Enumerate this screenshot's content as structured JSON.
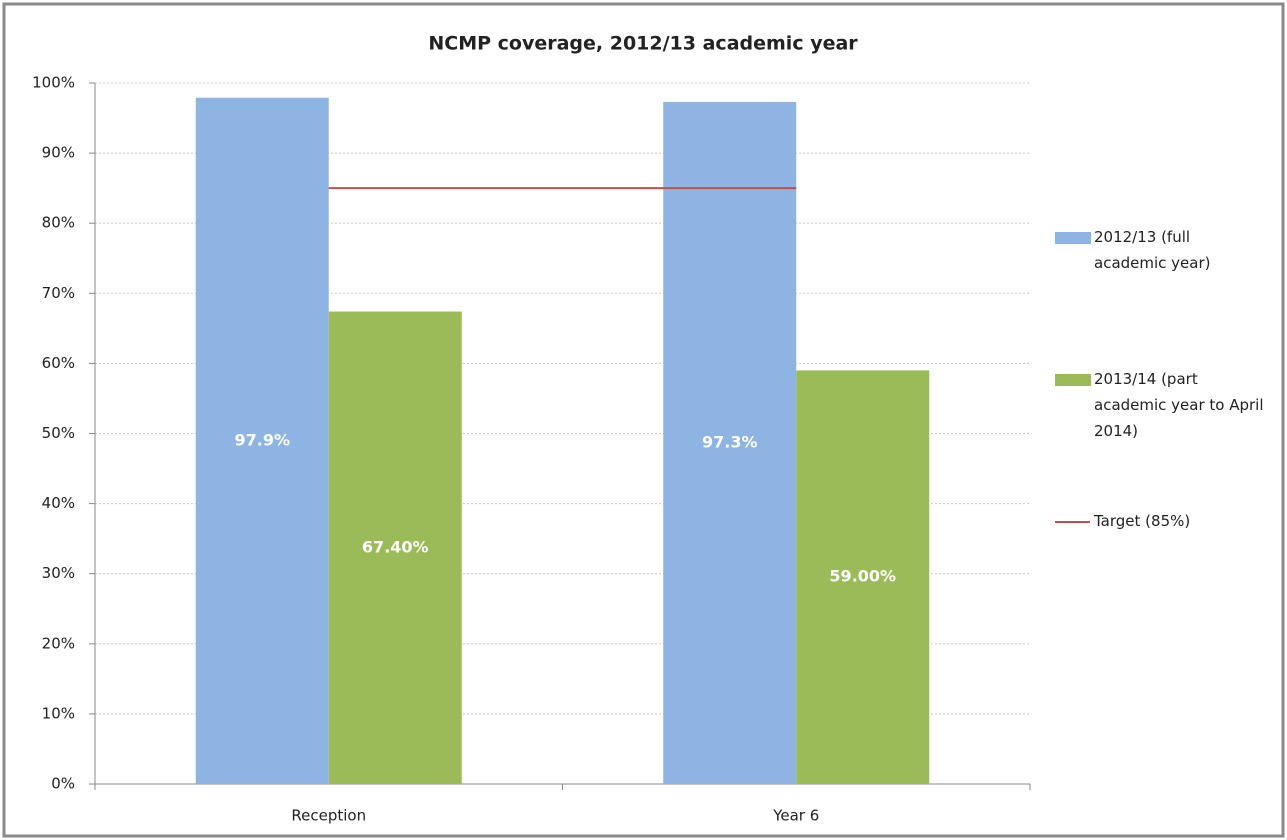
{
  "chart_data": {
    "type": "bar",
    "title": "NCMP coverage, 2012/13 academic year",
    "categories": [
      "Reception",
      "Year 6"
    ],
    "series": [
      {
        "name": "2012/13 (full academic year)",
        "color": "#8eb4e3",
        "values": [
          97.9,
          97.3
        ],
        "value_labels": [
          "97.9%",
          "97.3%"
        ]
      },
      {
        "name": "2013/14 (part academic year to April 2014)",
        "color": "#9bbb59",
        "values": [
          67.4,
          59.0
        ],
        "value_labels": [
          "67.40%",
          "59.00%"
        ]
      },
      {
        "name": "Target (85%)",
        "color": "#c0504d",
        "type": "line",
        "values": [
          85,
          85
        ]
      }
    ],
    "ylim": [
      0,
      100
    ],
    "yticks": [
      {
        "value": 0,
        "label": "0%"
      },
      {
        "value": 10,
        "label": "10%"
      },
      {
        "value": 20,
        "label": "20%"
      },
      {
        "value": 30,
        "label": "30%"
      },
      {
        "value": 40,
        "label": "40%"
      },
      {
        "value": 50,
        "label": "50%"
      },
      {
        "value": 60,
        "label": "60%"
      },
      {
        "value": 70,
        "label": "70%"
      },
      {
        "value": 80,
        "label": "80%"
      },
      {
        "value": 90,
        "label": "90%"
      },
      {
        "value": 100,
        "label": "100%"
      }
    ],
    "grid": true,
    "legend": "right"
  }
}
